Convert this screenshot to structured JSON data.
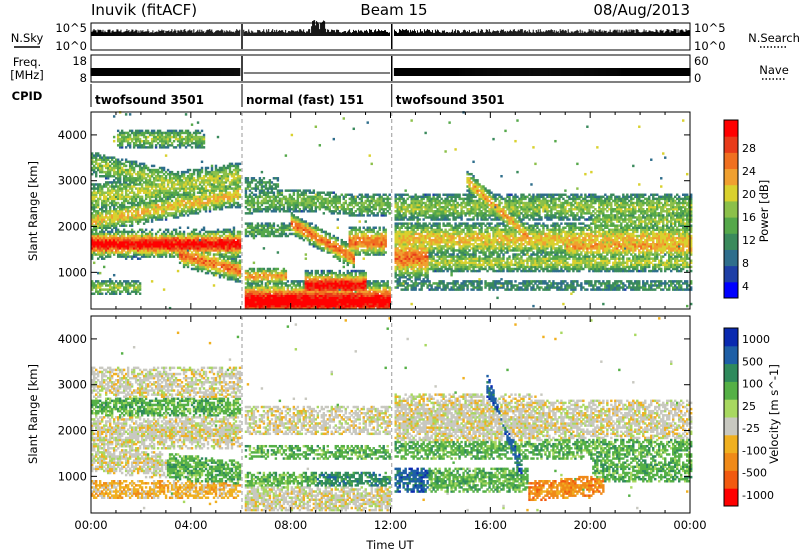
{
  "header": {
    "station": "Inuvik (fitACF)",
    "beam": "Beam 15",
    "date": "08/Aug/2013"
  },
  "strip_panel": {
    "left_labels": {
      "nsky": "N.Sky",
      "freq_line1": "Freq.",
      "freq_line2": "[MHz]",
      "cpid": "CPID"
    },
    "right_labels": {
      "nsearch": "N.Search",
      "nave": "Nave"
    },
    "nsky_ticks": [
      "10^5",
      "10^0"
    ],
    "nsearch_ticks": [
      "10^5",
      "10^0"
    ],
    "freq_ticks": [
      "18",
      "8"
    ],
    "nave_ticks": [
      "60",
      "0"
    ],
    "cpid_segments": [
      {
        "label": "twofsound 3501",
        "start_h": 0,
        "end_h": 6.05
      },
      {
        "label": "normal (fast) 151",
        "start_h": 6.05,
        "end_h": 12.05
      },
      {
        "label": "twofsound 3501",
        "start_h": 12.05,
        "end_h": 24
      }
    ]
  },
  "chart_data": [
    {
      "type": "heatmap",
      "name": "power",
      "xlabel": "",
      "ylabel": "Slant Range [km]",
      "xlim": [
        0,
        24
      ],
      "ylim": [
        200,
        4500
      ],
      "yticks": [
        "1000",
        "2000",
        "3000",
        "4000"
      ],
      "colorbar": {
        "label": "Power [dB]",
        "ticks": [
          "28",
          "24",
          "20",
          "16",
          "12",
          "8",
          "4"
        ],
        "colors": [
          "#0000ff",
          "#1e3fa6",
          "#2f6e8c",
          "#3a8a5c",
          "#55a84a",
          "#8cc04a",
          "#d9d12e",
          "#f0a030",
          "#f07020",
          "#e83b1a",
          "#ff0000"
        ]
      },
      "features": [
        {
          "t0": 0,
          "t1": 6,
          "r0": 1300,
          "r1": 1900,
          "level": "high"
        },
        {
          "t0": 0,
          "t1": 6,
          "r0": 2100,
          "r1": 3600,
          "level": "mid"
        },
        {
          "t0": 6.1,
          "t1": 11.8,
          "r0": 200,
          "r1": 900,
          "level": "very high"
        },
        {
          "t0": 6.1,
          "t1": 11.8,
          "r0": 1500,
          "r1": 2900,
          "level": "low-mid"
        },
        {
          "t0": 12.1,
          "t1": 24,
          "r0": 800,
          "r1": 2800,
          "level": "mid"
        }
      ]
    },
    {
      "type": "heatmap",
      "name": "velocity",
      "xlabel": "Time UT",
      "ylabel": "Slant Range [km]",
      "xlim": [
        0,
        24
      ],
      "ylim": [
        200,
        4500
      ],
      "xticks": [
        "00:00",
        "04:00",
        "08:00",
        "12:00",
        "16:00",
        "20:00",
        "00:00"
      ],
      "yticks": [
        "1000",
        "2000",
        "3000",
        "4000"
      ],
      "colorbar": {
        "label": "Velocity [m s^-1]",
        "ticks": [
          "1000",
          "500",
          "100",
          "25",
          "-25",
          "-100",
          "-500",
          "-1000"
        ],
        "colors": [
          "#ff0000",
          "#f25a10",
          "#f08a18",
          "#f0b020",
          "#c8c8c0",
          "#a8d860",
          "#55b046",
          "#2f8a5c",
          "#1e5fa6",
          "#0a2ab0"
        ]
      },
      "features": [
        {
          "t0": 0,
          "t1": 6,
          "r0": 1700,
          "r1": 2300,
          "value": "near zero"
        },
        {
          "t0": 6.1,
          "t1": 11.8,
          "r0": 300,
          "r1": 900,
          "value": "near zero"
        },
        {
          "t0": 12.1,
          "t1": 16,
          "r0": 1700,
          "r1": 3000,
          "value": "near zero"
        },
        {
          "t0": 12.1,
          "t1": 17.5,
          "r0": 500,
          "r1": 1200,
          "value": "positive"
        },
        {
          "t0": 17.5,
          "t1": 20.5,
          "r0": 400,
          "r1": 900,
          "value": "negative"
        }
      ]
    }
  ]
}
